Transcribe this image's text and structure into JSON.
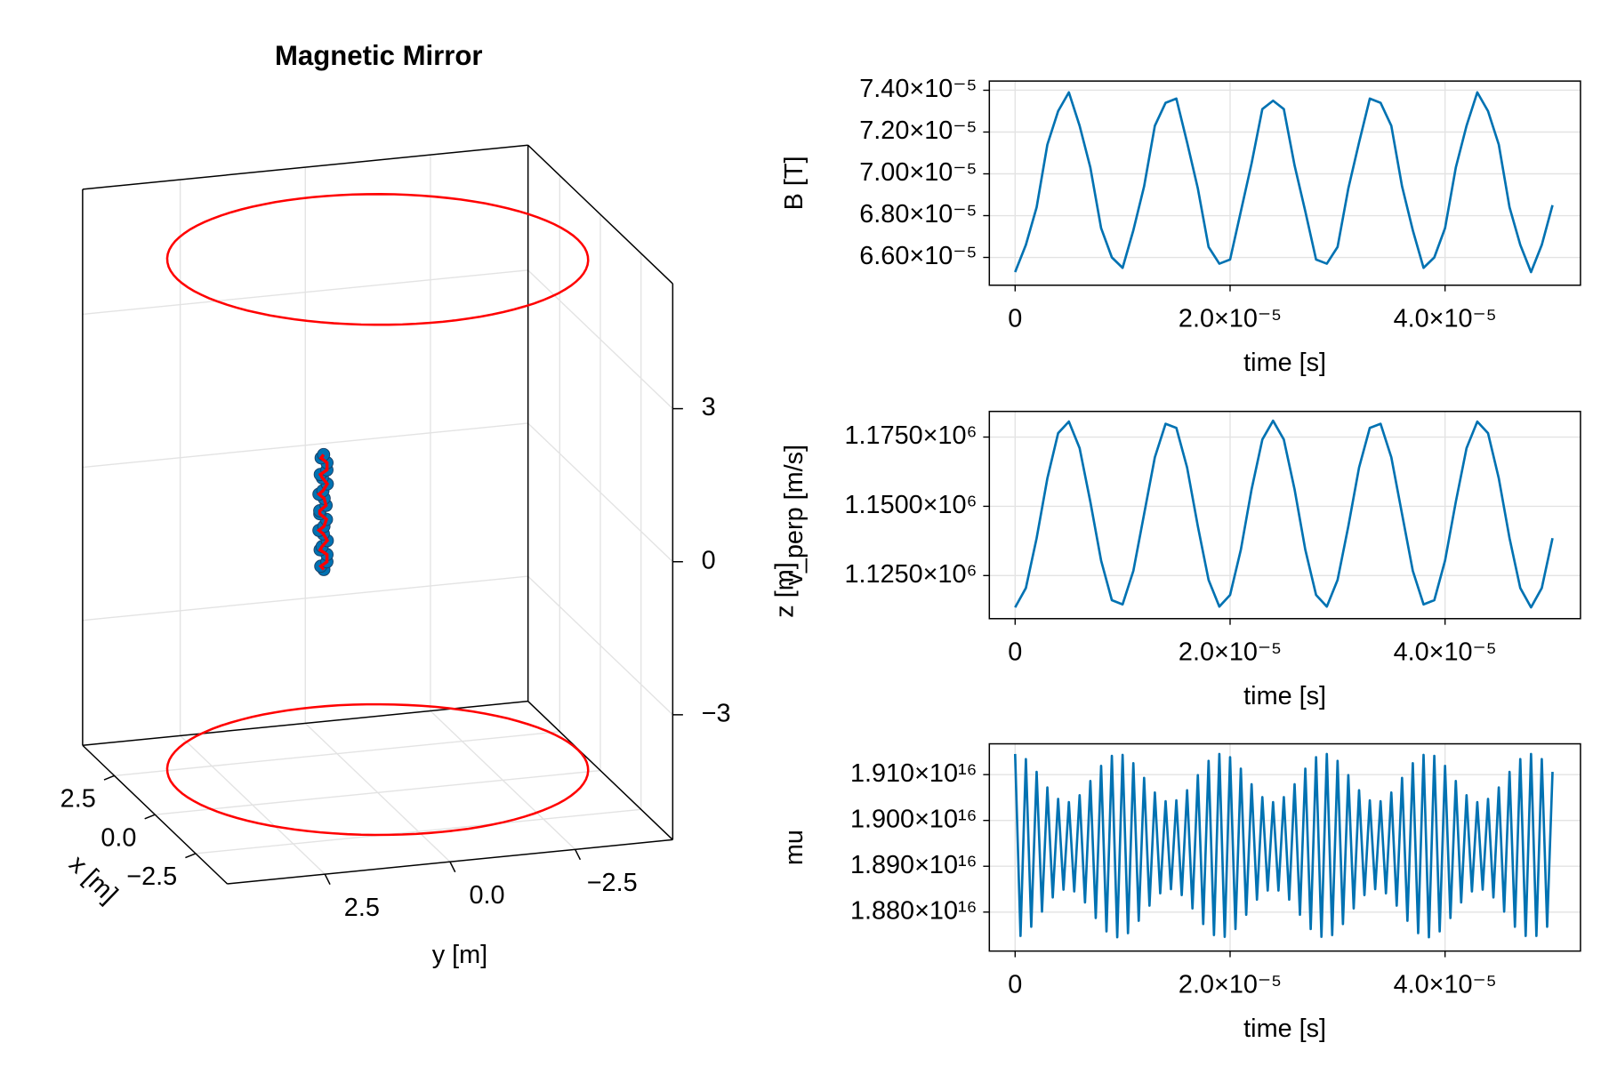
{
  "chart_data": [
    {
      "type": "scatter3d",
      "title": "Magnetic Mirror",
      "xlabel": "x [m]",
      "ylabel": "y [m]",
      "zlabel": "z [m]",
      "xlim": [
        -4.45,
        4.45
      ],
      "ylim": [
        -4.45,
        4.45
      ],
      "zlim": [
        -5.45,
        5.45
      ],
      "xticks": [
        {
          "value": -2.5,
          "label": "−2.5"
        },
        {
          "value": 0,
          "label": "0.0"
        },
        2.5
      ],
      "yticks": [
        {
          "value": -2.5,
          "label": "−2.5"
        },
        {
          "value": 0,
          "label": "0.0"
        },
        2.5
      ],
      "zticks": [
        {
          "value": -3,
          "label": "−3"
        },
        0,
        3
      ],
      "grid": true,
      "coils": {
        "z": [
          5,
          -5
        ],
        "radius": 4,
        "color": "#ff0000"
      },
      "trajectory": {
        "color": "#0072b2",
        "line_color": "#ff0000",
        "x": [
          0.08,
          -0.01,
          -0.08,
          0.04,
          0.06,
          -0.06,
          -0.04,
          0.08,
          0.01,
          -0.08,
          0.01,
          0.08,
          -0.04,
          -0.06,
          0.06,
          0.04,
          -0.08,
          -0.01,
          0.08,
          -0.01,
          -0.08,
          0.04,
          0.06,
          -0.06
        ],
        "y": [
          1.05,
          1.14,
          1.04,
          1.0,
          1.13,
          1.13,
          1.02,
          1.06,
          1.17,
          1.1,
          1.02,
          1.13,
          1.17,
          1.05,
          1.05,
          1.16,
          1.12,
          1.01,
          1.08,
          1.15,
          1.04,
          1.0,
          1.11,
          1.1
        ],
        "z": [
          -1.0,
          -0.9,
          -0.8,
          -0.7,
          -0.6,
          -0.5,
          -0.4,
          -0.3,
          -0.2,
          -0.1,
          0.0,
          0.1,
          0.2,
          0.3,
          0.4,
          0.5,
          0.6,
          0.7,
          0.8,
          0.9,
          1.0,
          1.1,
          1.2,
          1.3
        ]
      }
    },
    {
      "type": "line",
      "xlabel": "time [s]",
      "ylabel": "B [T]",
      "color": "#0072b2",
      "grid": true,
      "xlim": [
        -2.4e-06,
        5.26e-05
      ],
      "ylim": [
        6.467e-05,
        7.444e-05
      ],
      "xticks": [
        0,
        {
          "value": 2e-05,
          "label": "2.0×10⁻⁵"
        },
        {
          "value": 4e-05,
          "label": "4.0×10⁻⁵"
        }
      ],
      "yticks": [
        {
          "value": 6.6e-05,
          "label": "6.60×10⁻⁵"
        },
        {
          "value": 6.8e-05,
          "label": "6.80×10⁻⁵"
        },
        {
          "value": 7e-05,
          "label": "7.00×10⁻⁵"
        },
        {
          "value": 7.2e-05,
          "label": "7.20×10⁻⁵"
        },
        {
          "value": 7.4e-05,
          "label": "7.40×10⁻⁵"
        }
      ],
      "x": [
        0,
        1e-06,
        2e-06,
        3e-06,
        4e-06,
        5e-06,
        6e-06,
        7e-06,
        8e-06,
        9e-06,
        1e-05,
        1.1e-05,
        1.2e-05,
        1.3e-05,
        1.4e-05,
        1.5e-05,
        1.6e-05,
        1.7e-05,
        1.8e-05,
        1.9e-05,
        2e-05,
        2.1e-05,
        2.2e-05,
        2.3e-05,
        2.4e-05,
        2.5e-05,
        2.6e-05,
        2.7e-05,
        2.8e-05,
        2.9e-05,
        3e-05,
        3.1e-05,
        3.2e-05,
        3.3e-05,
        3.4e-05,
        3.5e-05,
        3.6e-05,
        3.7e-05,
        3.8e-05,
        3.9e-05,
        4e-05,
        4.1e-05,
        4.2e-05,
        4.3e-05,
        4.4e-05,
        4.5e-05,
        4.6e-05,
        4.7e-05,
        4.8e-05,
        4.9e-05,
        5e-05
      ],
      "values": [
        6.53e-05,
        6.66e-05,
        6.84e-05,
        7.14e-05,
        7.3e-05,
        7.39e-05,
        7.23e-05,
        7.03e-05,
        6.74e-05,
        6.6e-05,
        6.55e-05,
        6.73e-05,
        6.94e-05,
        7.23e-05,
        7.34e-05,
        7.36e-05,
        7.15e-05,
        6.93e-05,
        6.65e-05,
        6.57e-05,
        6.59e-05,
        6.82e-05,
        7.05e-05,
        7.31e-05,
        7.35e-05,
        7.31e-05,
        7.04e-05,
        6.82e-05,
        6.59e-05,
        6.57e-05,
        6.65e-05,
        6.93e-05,
        7.15e-05,
        7.36e-05,
        7.34e-05,
        7.23e-05,
        6.94e-05,
        6.73e-05,
        6.55e-05,
        6.6e-05,
        6.74e-05,
        7.03e-05,
        7.23e-05,
        7.39e-05,
        7.3e-05,
        7.14e-05,
        6.84e-05,
        6.66e-05,
        6.53e-05,
        6.66e-05,
        6.85e-05
      ]
    },
    {
      "type": "line",
      "xlabel": "time [s]",
      "ylabel": "v_perp [m/s]",
      "color": "#0072b2",
      "grid": true,
      "xlim": [
        -2.4e-06,
        5.26e-05
      ],
      "ylim": [
        1109444,
        1184260
      ],
      "xticks": [
        0,
        {
          "value": 2e-05,
          "label": "2.0×10⁻⁵"
        },
        {
          "value": 4e-05,
          "label": "4.0×10⁻⁵"
        }
      ],
      "yticks": [
        {
          "value": 1125000,
          "label": "1.1250×10⁶"
        },
        {
          "value": 1150000,
          "label": "1.1500×10⁶"
        },
        {
          "value": 1175000,
          "label": "1.1750×10⁶"
        }
      ],
      "x": [
        0,
        1e-06,
        2e-06,
        3e-06,
        4e-06,
        5e-06,
        6e-06,
        7e-06,
        8e-06,
        9e-06,
        1e-05,
        1.1e-05,
        1.2e-05,
        1.3e-05,
        1.4e-05,
        1.5e-05,
        1.6e-05,
        1.7e-05,
        1.8e-05,
        1.9e-05,
        2e-05,
        2.1e-05,
        2.2e-05,
        2.3e-05,
        2.4e-05,
        2.5e-05,
        2.6e-05,
        2.7e-05,
        2.8e-05,
        2.9e-05,
        3e-05,
        3.1e-05,
        3.2e-05,
        3.3e-05,
        3.4e-05,
        3.5e-05,
        3.6e-05,
        3.7e-05,
        3.8e-05,
        3.9e-05,
        4e-05,
        4.1e-05,
        4.2e-05,
        4.3e-05,
        4.4e-05,
        4.5e-05,
        4.6e-05,
        4.7e-05,
        4.8e-05,
        4.9e-05,
        5e-05
      ],
      "values": [
        1113500,
        1120500,
        1138500,
        1160100,
        1176400,
        1180600,
        1171000,
        1151600,
        1130400,
        1116100,
        1114600,
        1126700,
        1147200,
        1167700,
        1179800,
        1178300,
        1164000,
        1142800,
        1123400,
        1113800,
        1118000,
        1134300,
        1156100,
        1174100,
        1180900,
        1174100,
        1156100,
        1134300,
        1118000,
        1113800,
        1123400,
        1142800,
        1164000,
        1178300,
        1179800,
        1167700,
        1147200,
        1126700,
        1114600,
        1116100,
        1130400,
        1151600,
        1171000,
        1180600,
        1176400,
        1160100,
        1138500,
        1120500,
        1113500,
        1120500,
        1138500
      ]
    },
    {
      "type": "line",
      "xlabel": "time [s]",
      "ylabel": "mu",
      "color": "#0072b2",
      "grid": true,
      "xlim": [
        -2.4e-06,
        5.26e-05
      ],
      "ylim": [
        1.87149e+16,
        1.91672e+16
      ],
      "xticks": [
        0,
        {
          "value": 2e-05,
          "label": "2.0×10⁻⁵"
        },
        {
          "value": 4e-05,
          "label": "4.0×10⁻⁵"
        }
      ],
      "yticks": [
        {
          "value": 1.88e+16,
          "label": "1.880×10¹⁶"
        },
        {
          "value": 1.89e+16,
          "label": "1.890×10¹⁶"
        },
        {
          "value": 1.9e+16,
          "label": "1.900×10¹⁶"
        },
        {
          "value": 1.91e+16,
          "label": "1.910×10¹⁶"
        }
      ],
      "x": [
        0,
        5e-07,
        1e-06,
        1.5e-06,
        2e-06,
        2.5e-06,
        3e-06,
        3.5e-06,
        4e-06,
        4.5e-06,
        5e-06,
        5.5e-06,
        6e-06,
        6.5e-06,
        7e-06,
        7.5e-06,
        8e-06,
        8.5e-06,
        9e-06,
        9.5e-06,
        1e-05,
        1.05e-05,
        1.1e-05,
        1.15e-05,
        1.2e-05,
        1.25e-05,
        1.3e-05,
        1.35e-05,
        1.4e-05,
        1.45e-05,
        1.5e-05,
        1.55e-05,
        1.6e-05,
        1.65e-05,
        1.7e-05,
        1.75e-05,
        1.8e-05,
        1.85e-05,
        1.9e-05,
        1.95e-05,
        2e-05,
        2.05e-05,
        2.1e-05,
        2.15e-05,
        2.2e-05,
        2.25e-05,
        2.3e-05,
        2.35e-05,
        2.4e-05,
        2.45e-05,
        2.5e-05,
        2.55e-05,
        2.6e-05,
        2.65e-05,
        2.7e-05,
        2.75e-05,
        2.8e-05,
        2.85e-05,
        2.9e-05,
        2.95e-05,
        3e-05,
        3.05e-05,
        3.1e-05,
        3.15e-05,
        3.2e-05,
        3.25e-05,
        3.3e-05,
        3.35e-05,
        3.4e-05,
        3.45e-05,
        3.5e-05,
        3.55e-05,
        3.6e-05,
        3.65e-05,
        3.7e-05,
        3.75e-05,
        3.8e-05,
        3.85e-05,
        3.9e-05,
        3.95e-05,
        4e-05,
        4.05e-05,
        4.1e-05,
        4.15e-05,
        4.2e-05,
        4.25e-05,
        4.3e-05,
        4.35e-05,
        4.4e-05,
        4.45e-05,
        4.5e-05,
        4.55e-05,
        4.6e-05,
        4.65e-05,
        4.7e-05,
        4.75e-05,
        4.8e-05,
        4.85e-05,
        4.9e-05,
        4.95e-05,
        5e-05
      ],
      "values": [
        1.9145e+16,
        1.8748e+16,
        1.9134e+16,
        1.8768e+16,
        1.9106e+16,
        1.8801e+16,
        1.9072e+16,
        1.8832e+16,
        1.9047e+16,
        1.8849e+16,
        1.904e+16,
        1.8845e+16,
        1.9055e+16,
        1.8821e+16,
        1.9086e+16,
        1.8787e+16,
        1.9119e+16,
        1.8758e+16,
        1.9141e+16,
        1.8745e+16,
        1.9143e+16,
        1.8754e+16,
        1.9125e+16,
        1.8781e+16,
        1.9093e+16,
        1.8814e+16,
        1.9061e+16,
        1.8841e+16,
        1.9042e+16,
        1.885e+16,
        1.9044e+16,
        1.8837e+16,
        1.9066e+16,
        1.8808e+16,
        1.9099e+16,
        1.8774e+16,
        1.913e+16,
        1.875e+16,
        1.9145e+16,
        1.8746e+16,
        1.9138e+16,
        1.8763e+16,
        1.9113e+16,
        1.8794e+16,
        1.9079e+16,
        1.8827e+16,
        1.9051e+16,
        1.8847e+16,
        1.904e+16,
        1.8847e+16,
        1.9051e+16,
        1.8827e+16,
        1.9079e+16,
        1.8794e+16,
        1.9113e+16,
        1.8763e+16,
        1.9138e+16,
        1.8746e+16,
        1.9145e+16,
        1.875e+16,
        1.913e+16,
        1.8774e+16,
        1.9099e+16,
        1.8808e+16,
        1.9066e+16,
        1.8837e+16,
        1.9044e+16,
        1.885e+16,
        1.9042e+16,
        1.8841e+16,
        1.9061e+16,
        1.8814e+16,
        1.9093e+16,
        1.8781e+16,
        1.9125e+16,
        1.8754e+16,
        1.9143e+16,
        1.8745e+16,
        1.9141e+16,
        1.8758e+16,
        1.9119e+16,
        1.8787e+16,
        1.9086e+16,
        1.8821e+16,
        1.9055e+16,
        1.8845e+16,
        1.904e+16,
        1.8849e+16,
        1.9047e+16,
        1.8832e+16,
        1.9072e+16,
        1.8801e+16,
        1.9106e+16,
        1.8768e+16,
        1.9134e+16,
        1.8748e+16,
        1.9145e+16,
        1.8748e+16,
        1.9134e+16,
        1.8768e+16,
        1.9106e+16
      ]
    }
  ]
}
